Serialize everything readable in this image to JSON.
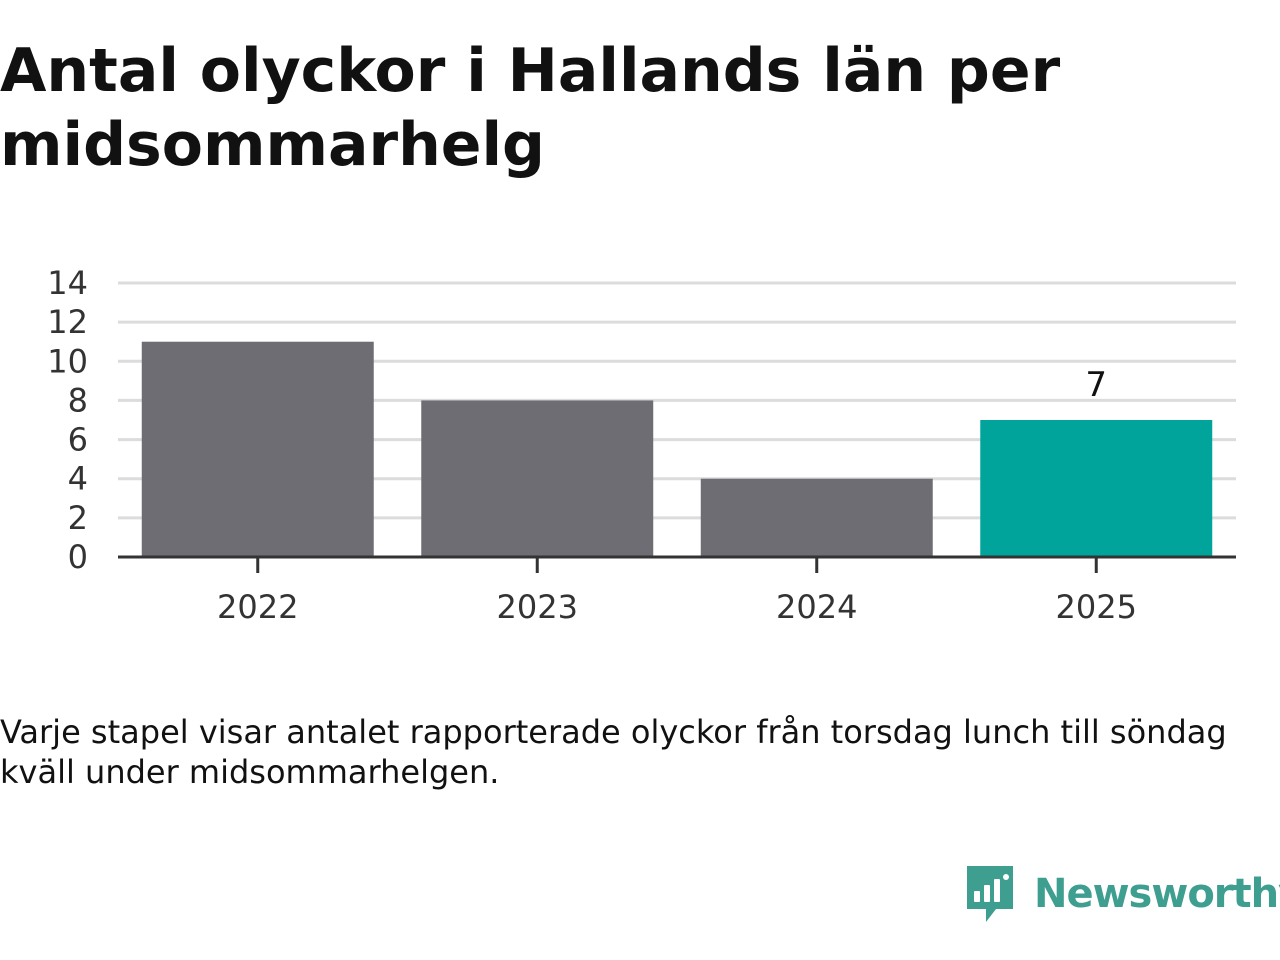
{
  "title": "Antal olyckor i Hallands län per midsommarhelg",
  "caption": "Varje stapel visar antalet rapporterade olyckor från torsdag lunch till söndag kväll under midsommarhelgen.",
  "brand": {
    "name": "Newsworthy",
    "icon": "newsworthy-logo-icon",
    "color": "#3e9e8f"
  },
  "chart_data": {
    "type": "bar",
    "categories": [
      "2022",
      "2023",
      "2024",
      "2025"
    ],
    "values": [
      11,
      8,
      4,
      7
    ],
    "ylim": [
      0,
      14
    ],
    "yticks": [
      0,
      2,
      4,
      6,
      8,
      10,
      12,
      14
    ],
    "grid": true,
    "colors": {
      "default": "#6e6d74",
      "highlight": "#00a49a"
    },
    "highlight_index": 3,
    "data_labels": {
      "2025": "7"
    }
  }
}
